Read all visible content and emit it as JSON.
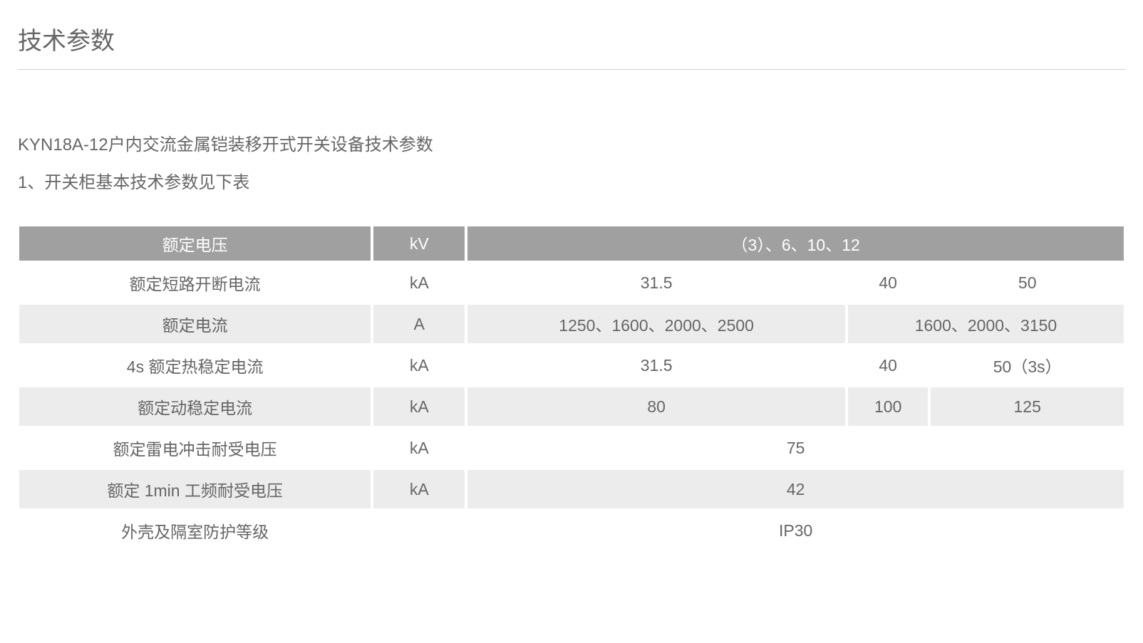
{
  "page_title": "技术参数",
  "subtitle_1": "KYN18A-12户内交流金属铠装移开式开关设备技术参数",
  "subtitle_2": "1、开关柜基本技术参数见下表",
  "table": {
    "colors": {
      "header_bg": "#a0a0a0",
      "header_text": "#ffffff",
      "row_alt_bg": "#ececec",
      "row_bg": "#ffffff",
      "text": "#666666",
      "border": "#ffffff"
    },
    "col_widths": [
      "32%",
      "8.5%",
      "30%",
      "16%",
      "13.5%"
    ],
    "header": {
      "name": "额定电压",
      "unit": "kV",
      "value": "（3）、6、10、12"
    },
    "rows": [
      {
        "name": "额定短路开断电流",
        "unit": "kA",
        "values": [
          "31.5",
          "40",
          "50"
        ]
      },
      {
        "name": "额定电流",
        "unit": "A",
        "values": [
          "1250、1600、2000、2500",
          "1600、2000、3150"
        ],
        "colspan_last": 2
      },
      {
        "name": "4s 额定热稳定电流",
        "unit": "kA",
        "values": [
          "31.5",
          "40",
          "50（3s）"
        ]
      },
      {
        "name": "额定动稳定电流",
        "unit": "kA",
        "values": [
          "80",
          "100",
          "125"
        ]
      },
      {
        "name": "额定雷电冲击耐受电压",
        "unit": "kA",
        "value_single": "75"
      },
      {
        "name": "额定 1min 工频耐受电压",
        "unit": "kA",
        "value_single": "42"
      },
      {
        "name": "外壳及隔室防护等级",
        "unit": "",
        "value_single": "IP30"
      }
    ]
  }
}
